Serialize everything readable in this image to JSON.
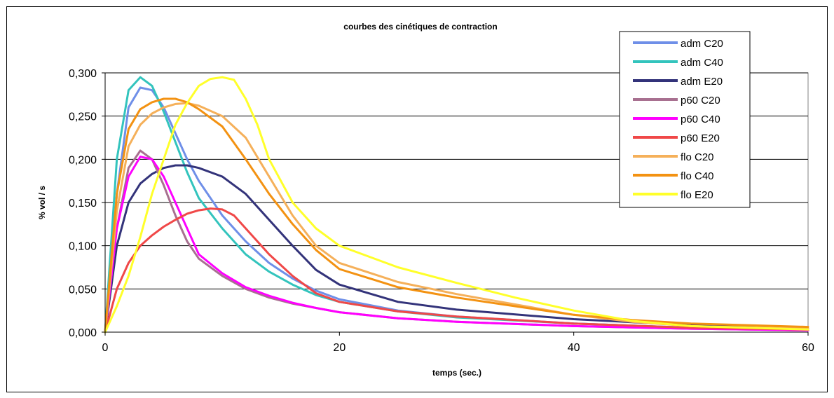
{
  "chart_data": {
    "type": "line",
    "title": "courbes des cinétiques de contraction",
    "xlabel": "temps (sec.)",
    "ylabel": "% vol / s",
    "xlim": [
      0,
      60
    ],
    "ylim": [
      0,
      0.3
    ],
    "xticks": [
      0,
      20,
      40,
      60
    ],
    "xtick_labels": [
      "0",
      "20",
      "40",
      "60"
    ],
    "yticks": [
      0,
      0.05,
      0.1,
      0.15,
      0.2,
      0.25,
      0.3
    ],
    "ytick_labels": [
      "0,000",
      "0,050",
      "0,100",
      "0,150",
      "0,200",
      "0,250",
      "0,300"
    ],
    "grid": "horizontal",
    "legend_position": "top-right",
    "series": [
      {
        "name": "adm C20",
        "color": "#6f8fe8",
        "x": [
          0,
          1,
          2,
          3,
          4,
          5,
          6,
          7,
          8,
          10,
          12,
          14,
          16,
          18,
          20,
          25,
          30,
          40,
          50,
          60
        ],
        "y": [
          0,
          0.16,
          0.26,
          0.283,
          0.28,
          0.26,
          0.23,
          0.2,
          0.175,
          0.135,
          0.105,
          0.08,
          0.062,
          0.048,
          0.038,
          0.025,
          0.018,
          0.01,
          0.005,
          0.003
        ]
      },
      {
        "name": "adm C40",
        "color": "#33c4bd",
        "x": [
          0,
          1,
          2,
          3,
          4,
          5,
          6,
          7,
          8,
          10,
          12,
          14,
          16,
          18,
          20,
          25,
          30,
          40,
          50,
          60
        ],
        "y": [
          0,
          0.2,
          0.28,
          0.295,
          0.285,
          0.255,
          0.22,
          0.185,
          0.155,
          0.12,
          0.09,
          0.07,
          0.055,
          0.043,
          0.035,
          0.024,
          0.017,
          0.01,
          0.005,
          0.003
        ]
      },
      {
        "name": "adm E20",
        "color": "#33337a",
        "x": [
          0,
          1,
          2,
          3,
          4,
          5,
          6,
          7,
          8,
          10,
          12,
          14,
          16,
          18,
          20,
          25,
          30,
          40,
          50,
          60
        ],
        "y": [
          0,
          0.1,
          0.15,
          0.172,
          0.183,
          0.19,
          0.193,
          0.193,
          0.19,
          0.18,
          0.16,
          0.13,
          0.1,
          0.072,
          0.055,
          0.035,
          0.026,
          0.015,
          0.008,
          0.004
        ]
      },
      {
        "name": "p60 C20",
        "color": "#a87090",
        "x": [
          0,
          1,
          2,
          3,
          4,
          5,
          6,
          7,
          8,
          10,
          12,
          14,
          16,
          18,
          20,
          25,
          30,
          40,
          50,
          60
        ],
        "y": [
          0,
          0.12,
          0.19,
          0.21,
          0.2,
          0.17,
          0.135,
          0.105,
          0.085,
          0.065,
          0.05,
          0.04,
          0.033,
          0.028,
          0.023,
          0.016,
          0.012,
          0.007,
          0.004,
          0.002
        ]
      },
      {
        "name": "p60 C40",
        "color": "#ff00ff",
        "x": [
          0,
          1,
          2,
          3,
          4,
          5,
          6,
          7,
          8,
          10,
          12,
          14,
          16,
          18,
          20,
          25,
          30,
          40,
          50,
          60
        ],
        "y": [
          0,
          0.12,
          0.18,
          0.203,
          0.2,
          0.18,
          0.15,
          0.12,
          0.09,
          0.068,
          0.052,
          0.042,
          0.034,
          0.028,
          0.023,
          0.016,
          0.012,
          0.007,
          0.004,
          0.002
        ]
      },
      {
        "name": "p60 E20",
        "color": "#f04848",
        "x": [
          0,
          1,
          2,
          3,
          4,
          5,
          6,
          7,
          8,
          9,
          10,
          11,
          12,
          14,
          16,
          18,
          20,
          25,
          30,
          40,
          50,
          60
        ],
        "y": [
          0,
          0.05,
          0.08,
          0.1,
          0.112,
          0.122,
          0.13,
          0.137,
          0.141,
          0.143,
          0.142,
          0.135,
          0.12,
          0.09,
          0.065,
          0.045,
          0.035,
          0.024,
          0.018,
          0.01,
          0.005,
          0.003
        ]
      },
      {
        "name": "flo C20",
        "color": "#f5b05a",
        "x": [
          0,
          1,
          2,
          3,
          4,
          5,
          6,
          7,
          8,
          10,
          12,
          14,
          16,
          18,
          20,
          25,
          30,
          35,
          40,
          45,
          50,
          60
        ],
        "y": [
          0,
          0.14,
          0.215,
          0.24,
          0.253,
          0.26,
          0.264,
          0.265,
          0.262,
          0.25,
          0.225,
          0.18,
          0.135,
          0.1,
          0.08,
          0.058,
          0.044,
          0.032,
          0.02,
          0.012,
          0.007,
          0.004
        ]
      },
      {
        "name": "flo C40",
        "color": "#f39212",
        "x": [
          0,
          1,
          2,
          3,
          4,
          5,
          6,
          7,
          8,
          10,
          12,
          14,
          16,
          18,
          20,
          25,
          30,
          35,
          40,
          45,
          50,
          60
        ],
        "y": [
          0,
          0.16,
          0.235,
          0.258,
          0.266,
          0.27,
          0.27,
          0.266,
          0.258,
          0.238,
          0.2,
          0.16,
          0.125,
          0.095,
          0.073,
          0.052,
          0.04,
          0.03,
          0.02,
          0.014,
          0.01,
          0.006
        ]
      },
      {
        "name": "flo E20",
        "color": "#ffff2a",
        "x": [
          0,
          1,
          2,
          3,
          4,
          5,
          6,
          7,
          8,
          9,
          10,
          11,
          12,
          13,
          14,
          16,
          18,
          20,
          25,
          30,
          35,
          40,
          45,
          50,
          60
        ],
        "y": [
          0,
          0.03,
          0.065,
          0.11,
          0.16,
          0.2,
          0.24,
          0.265,
          0.285,
          0.293,
          0.295,
          0.292,
          0.27,
          0.24,
          0.2,
          0.15,
          0.12,
          0.1,
          0.075,
          0.057,
          0.04,
          0.025,
          0.013,
          0.007,
          0.003
        ]
      }
    ]
  }
}
